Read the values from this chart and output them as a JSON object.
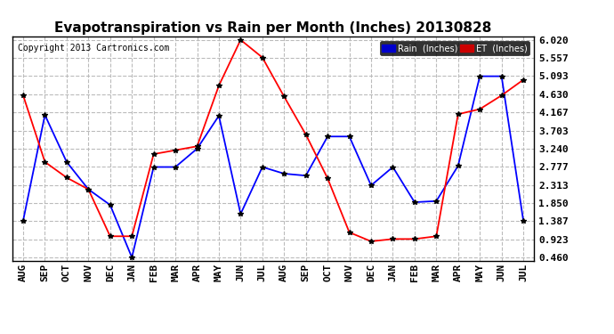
{
  "title": "Evapotranspiration vs Rain per Month (Inches) 20130828",
  "copyright": "Copyright 2013 Cartronics.com",
  "months": [
    "AUG",
    "SEP",
    "OCT",
    "NOV",
    "DEC",
    "JAN",
    "FEB",
    "MAR",
    "APR",
    "MAY",
    "JUN",
    "JUL",
    "AUG",
    "SEP",
    "OCT",
    "NOV",
    "DEC",
    "JAN",
    "FEB",
    "MAR",
    "APR",
    "MAY",
    "JUN",
    "JUL"
  ],
  "rain": [
    1.4,
    4.1,
    2.9,
    2.2,
    1.8,
    0.46,
    2.77,
    2.77,
    3.24,
    4.08,
    1.57,
    2.77,
    2.6,
    2.55,
    3.55,
    3.55,
    2.3,
    2.77,
    1.87,
    1.9,
    2.8,
    5.09,
    5.09,
    1.4
  ],
  "et": [
    4.6,
    2.9,
    2.5,
    2.2,
    1.0,
    1.0,
    3.1,
    3.2,
    3.3,
    4.85,
    6.02,
    5.57,
    4.57,
    3.6,
    2.48,
    1.1,
    0.87,
    0.93,
    0.93,
    1.0,
    4.12,
    4.25,
    4.6,
    5.0
  ],
  "rain_color": "blue",
  "et_color": "red",
  "ylim_min": 0.46,
  "ylim_max": 6.02,
  "yticks": [
    0.46,
    0.923,
    1.387,
    1.85,
    2.313,
    2.777,
    3.24,
    3.703,
    4.167,
    4.63,
    5.093,
    5.557,
    6.02
  ],
  "background_color": "#ffffff",
  "grid_color": "#bbbbbb",
  "title_fontsize": 11,
  "tick_fontsize": 8,
  "copyright_fontsize": 7,
  "legend_rain_label": "Rain  (Inches)",
  "legend_et_label": "ET  (Inches)",
  "legend_rain_bg": "#0000cc",
  "legend_et_bg": "#cc0000",
  "marker_color": "black",
  "marker_size": 4
}
